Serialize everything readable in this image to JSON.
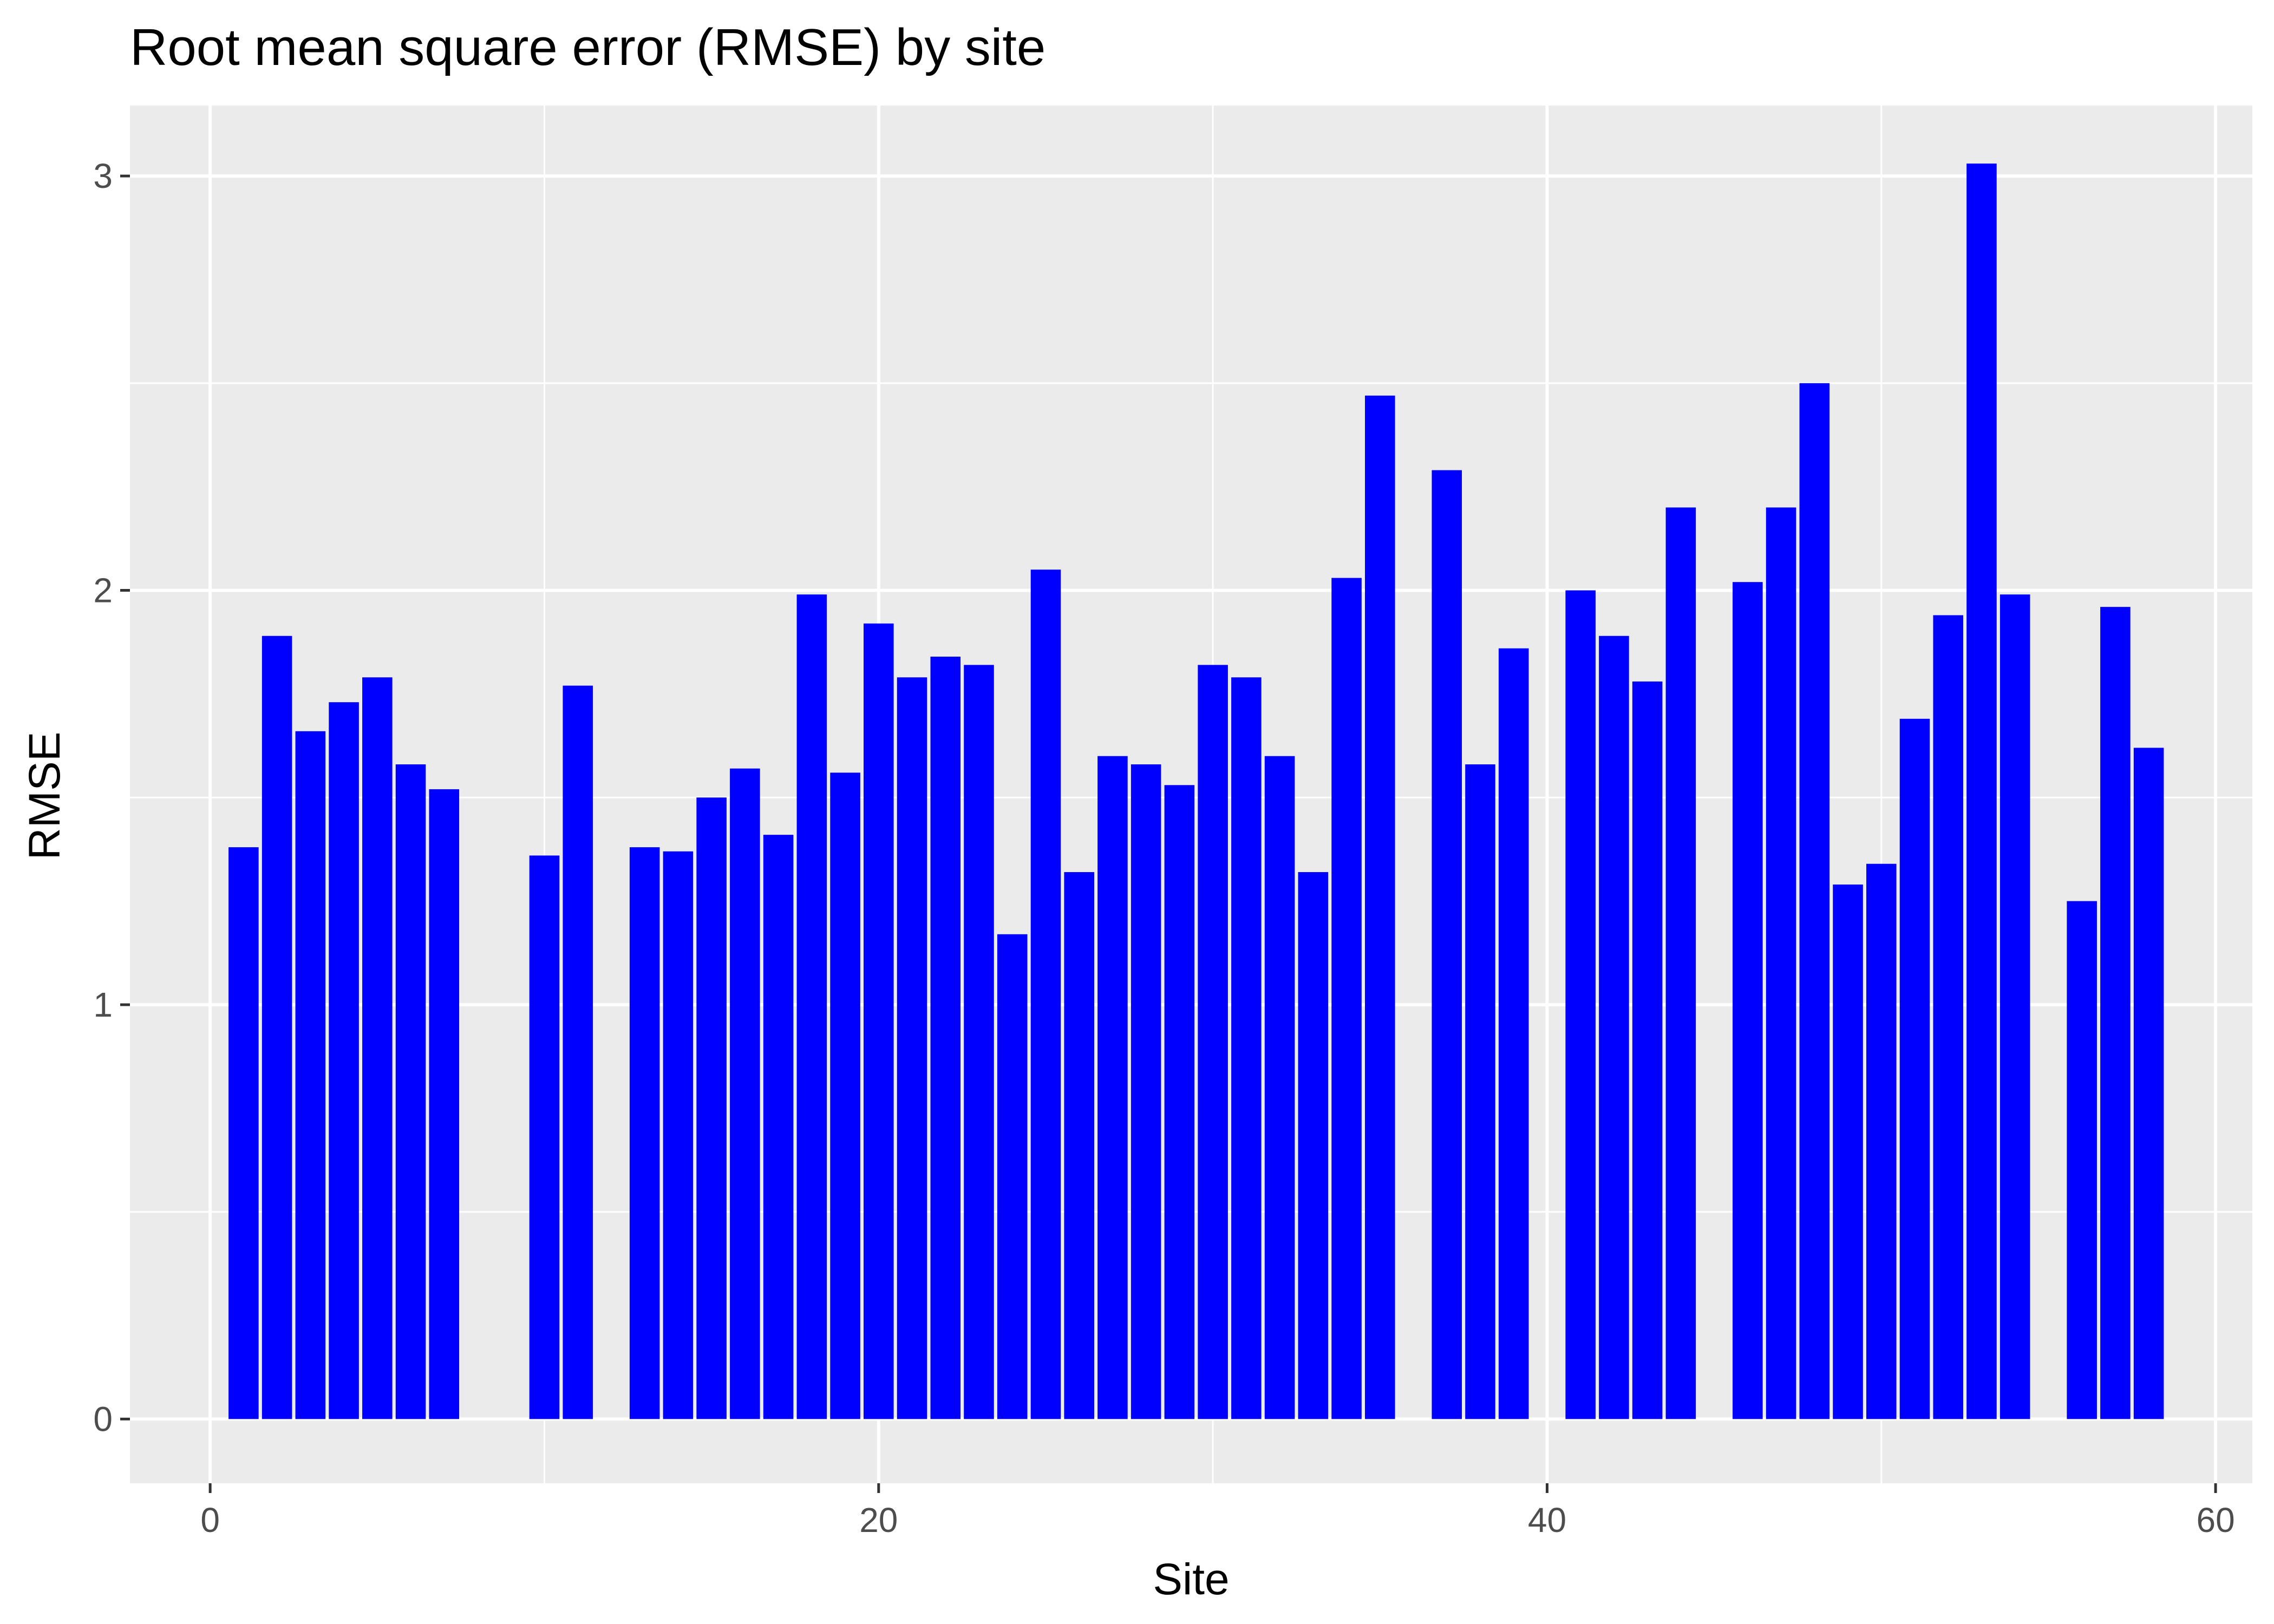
{
  "chart_data": {
    "type": "bar",
    "title": "Root mean square error (RMSE) by site",
    "xlabel": "Site",
    "ylabel": "RMSE",
    "xlim": [
      -2.4,
      61.1
    ],
    "ylim": [
      -0.155,
      3.17
    ],
    "x_ticks": [
      "0",
      "20",
      "40",
      "60"
    ],
    "y_ticks": [
      "0",
      "1",
      "2",
      "3"
    ],
    "grid": true,
    "legend": "none",
    "bar_color": "#0000FF",
    "panel_background": "#EBEBEB",
    "x": [
      1,
      2,
      3,
      4,
      5,
      6,
      7,
      10,
      11,
      13,
      14,
      15,
      16,
      17,
      18,
      19,
      20,
      21,
      22,
      23,
      24,
      25,
      26,
      27,
      28,
      29,
      30,
      31,
      32,
      33,
      34,
      35,
      37,
      38,
      39,
      41,
      42,
      43,
      44,
      46,
      47,
      48,
      49,
      50,
      51,
      52,
      53,
      54,
      56,
      57,
      58
    ],
    "values": [
      1.38,
      1.89,
      1.66,
      1.73,
      1.79,
      1.58,
      1.52,
      1.36,
      1.77,
      1.38,
      1.37,
      1.5,
      1.57,
      1.41,
      1.99,
      1.56,
      1.92,
      1.79,
      1.84,
      1.82,
      1.17,
      2.05,
      1.32,
      1.6,
      1.58,
      1.53,
      1.82,
      1.79,
      1.6,
      1.32,
      2.03,
      2.47,
      2.29,
      1.58,
      1.86,
      2.0,
      1.89,
      1.78,
      2.2,
      2.02,
      2.2,
      2.5,
      1.29,
      1.34,
      1.69,
      1.94,
      3.03,
      1.99,
      1.25,
      1.96,
      1.62
    ]
  }
}
